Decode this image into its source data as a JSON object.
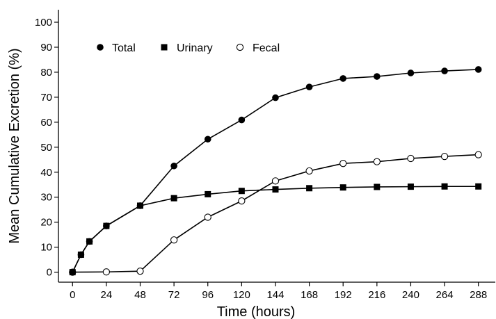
{
  "chart_data": {
    "type": "line",
    "title": "",
    "xlabel": "Time (hours)",
    "ylabel": "Mean Cumulative Excretion (%)",
    "xlim": [
      -10,
      300
    ],
    "ylim": [
      -4,
      105
    ],
    "xticks": [
      0,
      24,
      48,
      72,
      96,
      120,
      144,
      168,
      192,
      216,
      240,
      264,
      288
    ],
    "yticks": [
      0,
      10,
      20,
      30,
      40,
      50,
      60,
      70,
      80,
      90,
      100
    ],
    "grid": false,
    "legend": "top-left",
    "series": [
      {
        "name": "Total",
        "marker": "filled-circle",
        "x": [
          0,
          6,
          12,
          24,
          48,
          72,
          96,
          120,
          144,
          168,
          192,
          216,
          240,
          264,
          288
        ],
        "y": [
          0,
          7,
          12.3,
          18.5,
          26.6,
          42.5,
          53.2,
          60.9,
          69.8,
          74.1,
          77.5,
          78.3,
          79.7,
          80.5,
          81.1
        ]
      },
      {
        "name": "Urinary",
        "marker": "filled-square",
        "x": [
          0,
          6,
          12,
          24,
          48,
          72,
          96,
          120,
          144,
          168,
          192,
          216,
          240,
          264,
          288
        ],
        "y": [
          0,
          7,
          12.3,
          18.5,
          26.6,
          29.6,
          31.2,
          32.5,
          33.1,
          33.6,
          33.9,
          34.1,
          34.2,
          34.3,
          34.3
        ]
      },
      {
        "name": "Fecal",
        "marker": "open-circle",
        "x": [
          0,
          24,
          48,
          72,
          96,
          120,
          144,
          168,
          192,
          216,
          240,
          264,
          288
        ],
        "y": [
          0,
          0.1,
          0.4,
          12.9,
          22.0,
          28.5,
          36.5,
          40.5,
          43.5,
          44.2,
          45.5,
          46.3,
          47.0
        ]
      }
    ]
  }
}
